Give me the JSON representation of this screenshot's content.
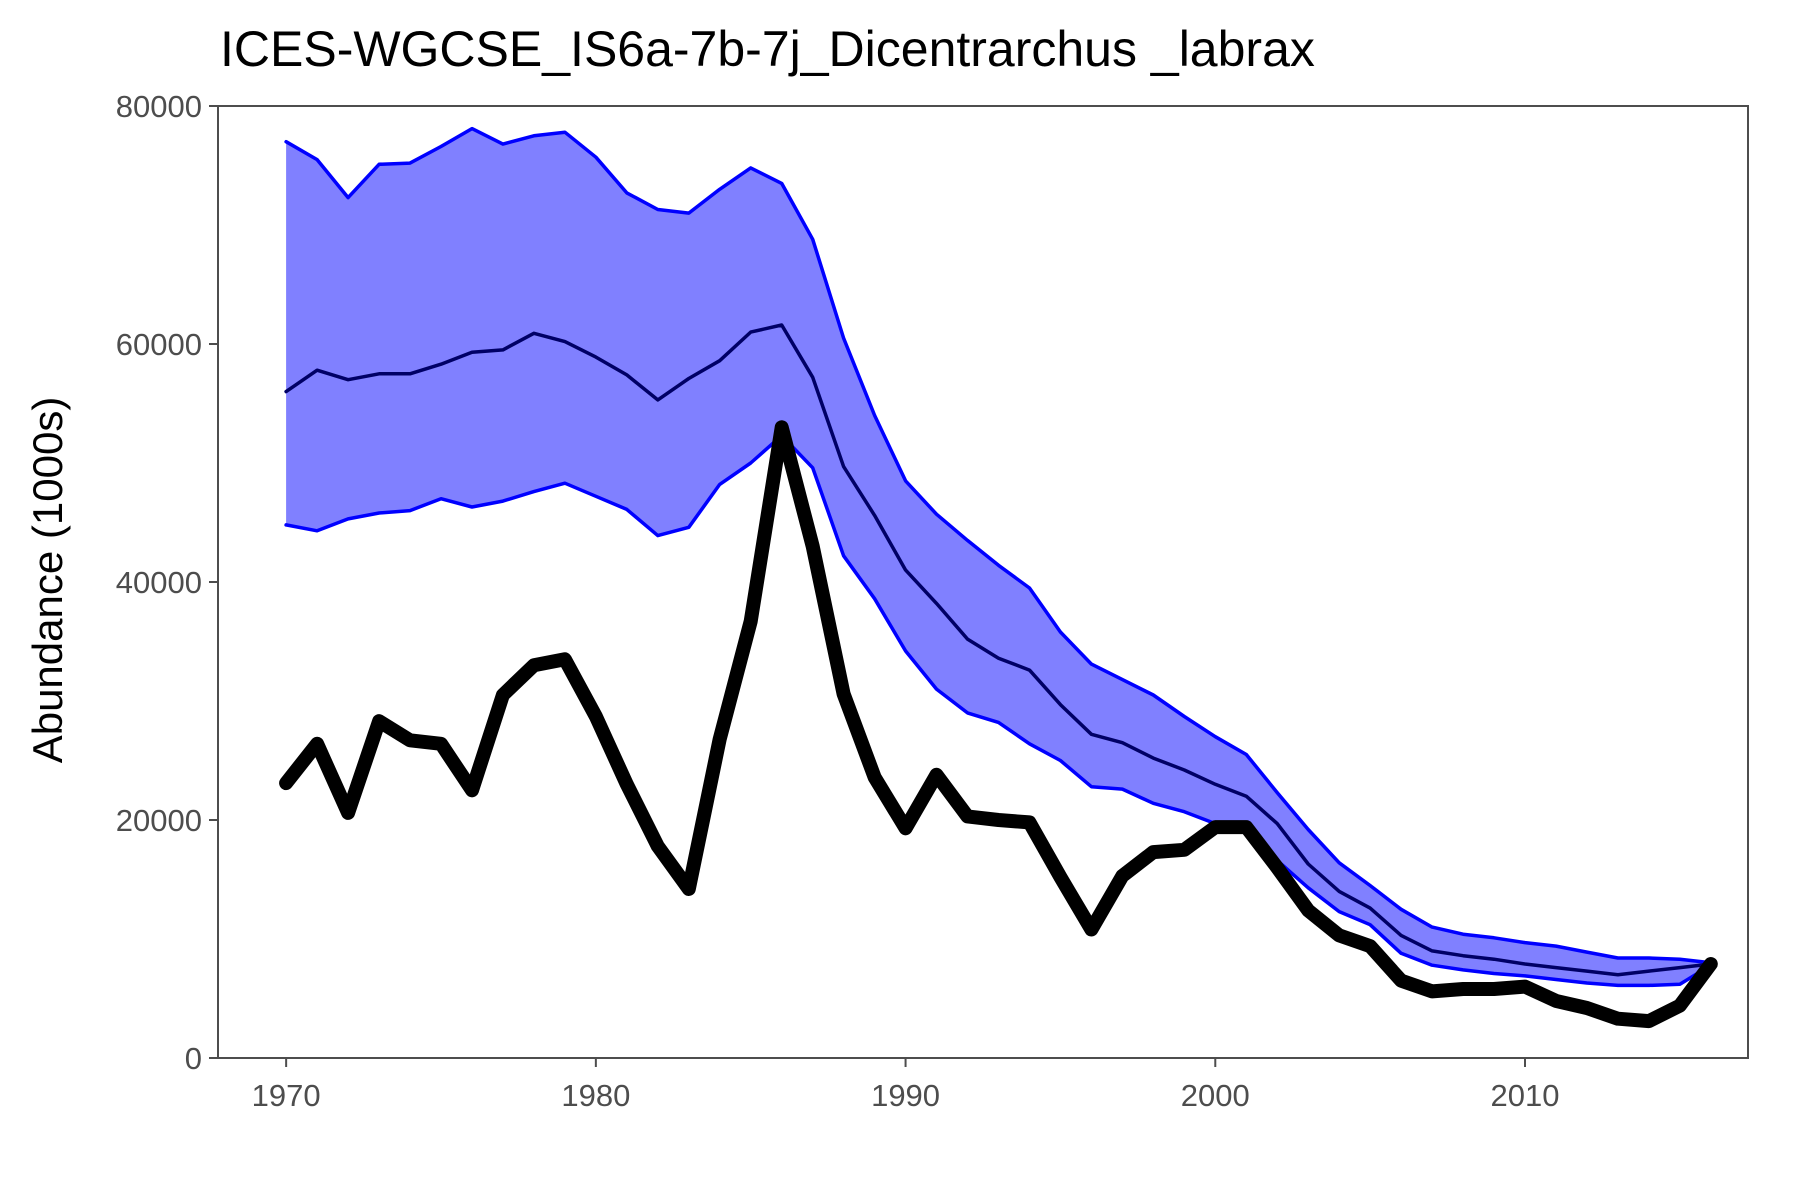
{
  "chart_data": {
    "type": "line",
    "title": "ICES-WGCSE_IS6a-7b-7j_Dicentrarchus _labrax",
    "xlabel": "",
    "ylabel": "Abundance (1000s)",
    "xlim": [
      1967.8,
      2017.2
    ],
    "ylim": [
      0,
      80000
    ],
    "x_ticks": [
      1970,
      1980,
      1990,
      2000,
      2010
    ],
    "y_ticks": [
      0,
      20000,
      40000,
      60000,
      80000
    ],
    "grid": false,
    "legend": "none",
    "x": [
      1970,
      1971,
      1972,
      1973,
      1974,
      1975,
      1976,
      1977,
      1978,
      1979,
      1980,
      1981,
      1982,
      1983,
      1984,
      1985,
      1986,
      1987,
      1988,
      1989,
      1990,
      1991,
      1992,
      1993,
      1994,
      1995,
      1996,
      1997,
      1998,
      1999,
      2000,
      2001,
      2002,
      2003,
      2004,
      2005,
      2006,
      2007,
      2008,
      2009,
      2010,
      2011,
      2012,
      2013,
      2014,
      2015,
      2016
    ],
    "series": [
      {
        "role": "band-upper",
        "color": "#0000ff",
        "values": [
          77000,
          75500,
          72300,
          75100,
          75200,
          76600,
          78100,
          76800,
          77500,
          77800,
          75700,
          72700,
          71300,
          71000,
          73000,
          74800,
          73500,
          68800,
          60500,
          54000,
          48500,
          45700,
          43500,
          41400,
          39500,
          35800,
          33100,
          31800,
          30500,
          28700,
          27000,
          25500,
          22300,
          19200,
          16400,
          14500,
          12500,
          11000,
          10400,
          10100,
          9700,
          9400,
          8900,
          8400,
          8400,
          8300,
          8000
        ]
      },
      {
        "role": "band-lower",
        "color": "#0000ff",
        "values": [
          44800,
          44300,
          45300,
          45800,
          46000,
          47000,
          46300,
          46800,
          47600,
          48300,
          47200,
          46100,
          43900,
          44600,
          48200,
          50000,
          52300,
          49600,
          42200,
          38600,
          34200,
          31000,
          29000,
          28200,
          26400,
          25000,
          22800,
          22600,
          21400,
          20700,
          19700,
          19400,
          16600,
          14300,
          12300,
          11200,
          8800,
          7800,
          7400,
          7100,
          6900,
          6600,
          6300,
          6100,
          6100,
          6200,
          7800
        ]
      },
      {
        "role": "central",
        "color": "#000066",
        "values": [
          56000,
          57800,
          57000,
          57500,
          57500,
          58300,
          59300,
          59500,
          60900,
          60200,
          58900,
          57400,
          55300,
          57100,
          58600,
          61000,
          61600,
          57200,
          49700,
          45600,
          41000,
          38200,
          35200,
          33600,
          32600,
          29700,
          27200,
          26500,
          25200,
          24200,
          23000,
          22000,
          19700,
          16300,
          14000,
          12600,
          10300,
          9000,
          8600,
          8300,
          7900,
          7600,
          7300,
          7000,
          7300,
          7600,
          7900
        ]
      },
      {
        "role": "observed",
        "color": "#000000",
        "values": [
          23100,
          26400,
          20600,
          28300,
          26700,
          26400,
          22500,
          30500,
          33000,
          33500,
          28700,
          23000,
          17800,
          14200,
          26800,
          36700,
          53000,
          43000,
          30600,
          23600,
          19300,
          23800,
          20300,
          20000,
          19800,
          15200,
          10800,
          15300,
          17300,
          17500,
          19400,
          19400,
          16000,
          12400,
          10300,
          9400,
          6500,
          5600,
          5800,
          5800,
          6000,
          4800,
          4200,
          3300,
          3100,
          4400,
          7900
        ]
      }
    ],
    "colors": {
      "band_fill": "#8080ff",
      "band_edge": "#0000ff",
      "central_line": "#000066",
      "observed_line": "#000000",
      "axis_frame": "#4d4d4d"
    }
  }
}
